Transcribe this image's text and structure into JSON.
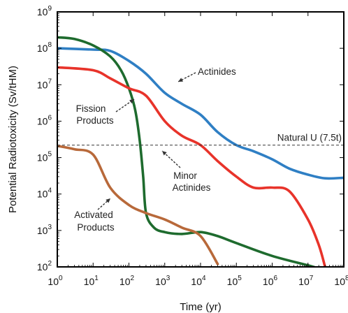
{
  "chart_data": {
    "type": "line",
    "title": "",
    "xlabel": "Time (yr)",
    "ylabel": "Potential Radiotoxicity (Sv/tHM)",
    "x_scale": "log",
    "y_scale": "log",
    "xlim": [
      1,
      100000000
    ],
    "ylim": [
      100,
      1000000000
    ],
    "x_ticks": [
      {
        "base": "10",
        "exp": "0",
        "value": 1
      },
      {
        "base": "10",
        "exp": "1",
        "value": 10
      },
      {
        "base": "10",
        "exp": "2",
        "value": 100
      },
      {
        "base": "10",
        "exp": "3",
        "value": 1000
      },
      {
        "base": "10",
        "exp": "4",
        "value": 10000
      },
      {
        "base": "10",
        "exp": "5",
        "value": 100000
      },
      {
        "base": "10",
        "exp": "6",
        "value": 1000000
      },
      {
        "base": "10",
        "exp": "7",
        "value": 10000000
      },
      {
        "base": "10",
        "exp": "8",
        "value": 100000000
      }
    ],
    "y_ticks": [
      {
        "base": "10",
        "exp": "2",
        "value": 100
      },
      {
        "base": "10",
        "exp": "3",
        "value": 1000
      },
      {
        "base": "10",
        "exp": "4",
        "value": 10000
      },
      {
        "base": "10",
        "exp": "5",
        "value": 100000
      },
      {
        "base": "10",
        "exp": "6",
        "value": 1000000
      },
      {
        "base": "10",
        "exp": "7",
        "value": 10000000
      },
      {
        "base": "10",
        "exp": "8",
        "value": 100000000
      },
      {
        "base": "10",
        "exp": "9",
        "value": 1000000000
      }
    ],
    "grid": false,
    "legend": "none",
    "reference_line": {
      "label": "Natural U (7.5t)",
      "y": 220000,
      "style": "dashed"
    },
    "series": [
      {
        "color": "#2f7fc4",
        "points": [
          [
            1,
            100000000
          ],
          [
            10,
            92000000
          ],
          [
            30,
            85000000
          ],
          [
            100,
            45000000
          ],
          [
            300,
            20000000
          ],
          [
            1000,
            6000000
          ],
          [
            3000,
            3000000
          ],
          [
            10000,
            1500000
          ],
          [
            30000,
            500000
          ],
          [
            100000,
            220000
          ],
          [
            300000,
            150000
          ],
          [
            1000000,
            90000
          ],
          [
            3000000,
            50000
          ],
          [
            10000000,
            34000
          ],
          [
            30000000,
            27000
          ],
          [
            100000000,
            28000
          ]
        ]
      },
      {
        "color": "#1e6b2e",
        "points": [
          [
            1,
            200000000
          ],
          [
            3,
            180000000
          ],
          [
            10,
            120000000
          ],
          [
            30,
            60000000
          ],
          [
            60,
            25000000
          ],
          [
            100,
            8000000
          ],
          [
            150,
            2000000
          ],
          [
            200,
            300000
          ],
          [
            250,
            30000
          ],
          [
            300,
            3000
          ],
          [
            500,
            1200
          ],
          [
            1000,
            900
          ],
          [
            3000,
            800
          ],
          [
            10000,
            900
          ],
          [
            30000,
            700
          ],
          [
            100000,
            450
          ],
          [
            1000000,
            200
          ],
          [
            10000000,
            110
          ],
          [
            20000000,
            90
          ]
        ]
      },
      {
        "color": "#e8332a",
        "points": [
          [
            1,
            30000000
          ],
          [
            10,
            25000000
          ],
          [
            30,
            15000000
          ],
          [
            100,
            8000000
          ],
          [
            300,
            5000000
          ],
          [
            1000,
            1000000
          ],
          [
            3000,
            400000
          ],
          [
            10000,
            220000
          ],
          [
            30000,
            80000
          ],
          [
            100000,
            30000
          ],
          [
            300000,
            15000
          ],
          [
            1000000,
            15000
          ],
          [
            3000000,
            12000
          ],
          [
            10000000,
            2000
          ],
          [
            20000000,
            400
          ],
          [
            30000000,
            100
          ]
        ]
      },
      {
        "color": "#b8693a",
        "points": [
          [
            1,
            210000
          ],
          [
            3,
            170000
          ],
          [
            10,
            120000
          ],
          [
            30,
            15000
          ],
          [
            100,
            5000
          ],
          [
            300,
            3000
          ],
          [
            1000,
            2000
          ],
          [
            3000,
            1200
          ],
          [
            10000,
            700
          ],
          [
            30000,
            120
          ]
        ]
      }
    ],
    "annotations": [
      {
        "text": "Actinides"
      },
      {
        "lines": [
          "Fission",
          "Products"
        ]
      },
      {
        "lines": [
          "Minor",
          "Actinides"
        ]
      },
      {
        "lines": [
          "Activated",
          "Products"
        ]
      }
    ]
  }
}
